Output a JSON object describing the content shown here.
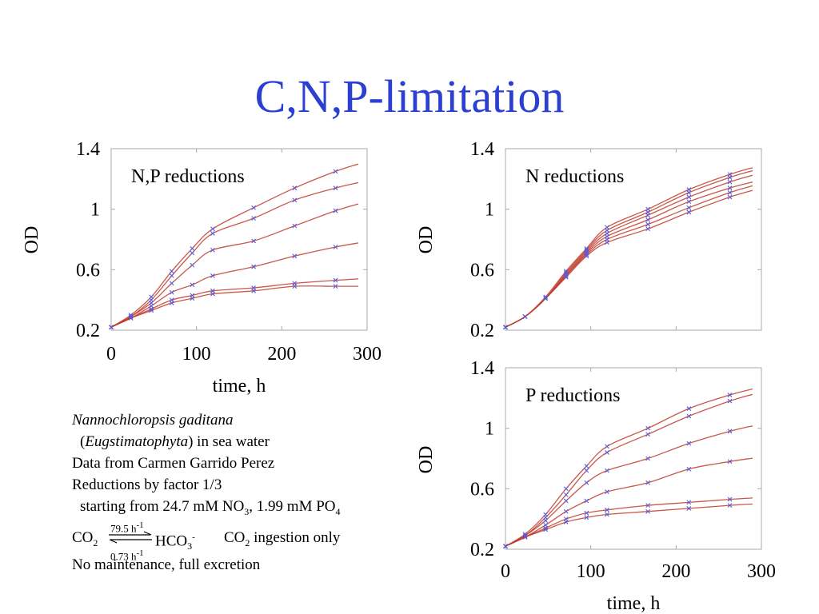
{
  "slide": {
    "title": "C,N,P-limitation"
  },
  "notes": {
    "species": "Nannochloropsis gaditana",
    "phylum_open": "(",
    "phylum": "Eugstimatophyta",
    "phylum_close": ") in sea water",
    "data_source": "Data from Carmen Garrido Perez",
    "reductions": "Reductions by factor 1/3",
    "start_prefix": "starting from 24.7 mM NO",
    "no3_sub": "3",
    "start_mid": ", 1.99 mM PO",
    "po4_sub": "4",
    "co2_a": "CO",
    "co2_a_sub": "2",
    "hco3": "HCO",
    "hco3_sub": "3",
    "hco3_sup": "-",
    "rate_forward": "79.5 h",
    "rate_forward_sup": "-1",
    "rate_back": "0.73 h",
    "rate_back_sup": "-1",
    "co2_b": "CO",
    "co2_b_sub": "2",
    "co2_b_rest": " ingestion only",
    "maintenance": "No maintenance, full excretion"
  },
  "colors": {
    "title": "#2b3fd3",
    "curve": "#c0392b",
    "marker": "#5b5bd6",
    "frame": "#aaaaaa"
  },
  "chart_data": [
    {
      "type": "line",
      "panel_label": "N,P reductions",
      "xlabel": "time, h",
      "ylabel": "OD",
      "xlim": [
        0,
        300
      ],
      "ylim": [
        0.2,
        1.4
      ],
      "xticks": [
        "0",
        "100",
        "200",
        "300"
      ],
      "yticks": [
        "0.2",
        "0.6",
        "1",
        "1.4"
      ],
      "x": [
        0,
        23,
        47,
        71,
        95,
        119,
        167,
        215,
        263
      ],
      "series": [
        {
          "values": [
            0.22,
            0.3,
            0.42,
            0.59,
            0.74,
            0.87,
            1.01,
            1.14,
            1.25
          ]
        },
        {
          "values": [
            0.22,
            0.29,
            0.4,
            0.56,
            0.71,
            0.84,
            0.94,
            1.06,
            1.14
          ]
        },
        {
          "values": [
            0.22,
            0.29,
            0.38,
            0.51,
            0.63,
            0.73,
            0.79,
            0.89,
            0.99
          ]
        },
        {
          "values": [
            0.22,
            0.28,
            0.36,
            0.45,
            0.5,
            0.56,
            0.62,
            0.69,
            0.75
          ]
        },
        {
          "values": [
            0.22,
            0.28,
            0.34,
            0.4,
            0.43,
            0.46,
            0.48,
            0.51,
            0.53
          ]
        },
        {
          "values": [
            0.22,
            0.28,
            0.33,
            0.38,
            0.41,
            0.44,
            0.46,
            0.49,
            0.49
          ]
        }
      ]
    },
    {
      "type": "line",
      "panel_label": "N reductions",
      "xlabel": "",
      "ylabel": "OD",
      "xlim": [
        0,
        300
      ],
      "ylim": [
        0.2,
        1.4
      ],
      "xticks": [],
      "yticks": [
        "0.2",
        "0.6",
        "1",
        "1.4"
      ],
      "x": [
        0,
        23,
        47,
        71,
        95,
        119,
        167,
        215,
        263
      ],
      "series": [
        {
          "values": [
            0.22,
            0.29,
            0.42,
            0.59,
            0.74,
            0.88,
            1.0,
            1.13,
            1.23
          ]
        },
        {
          "values": [
            0.22,
            0.29,
            0.41,
            0.58,
            0.73,
            0.86,
            0.98,
            1.11,
            1.21
          ]
        },
        {
          "values": [
            0.22,
            0.29,
            0.41,
            0.57,
            0.72,
            0.84,
            0.96,
            1.08,
            1.18
          ]
        },
        {
          "values": [
            0.22,
            0.29,
            0.41,
            0.56,
            0.71,
            0.82,
            0.93,
            1.05,
            1.14
          ]
        },
        {
          "values": [
            0.22,
            0.29,
            0.41,
            0.56,
            0.7,
            0.8,
            0.9,
            1.01,
            1.11
          ]
        },
        {
          "values": [
            0.22,
            0.29,
            0.41,
            0.55,
            0.69,
            0.78,
            0.87,
            0.98,
            1.08
          ]
        }
      ]
    },
    {
      "type": "line",
      "panel_label": "P reductions",
      "xlabel": "time, h",
      "ylabel": "OD",
      "xlim": [
        0,
        300
      ],
      "ylim": [
        0.2,
        1.4
      ],
      "xticks": [
        "0",
        "100",
        "200",
        "300"
      ],
      "yticks": [
        "0.2",
        "0.6",
        "1",
        "1.4"
      ],
      "x": [
        0,
        23,
        47,
        71,
        95,
        119,
        167,
        215,
        263
      ],
      "series": [
        {
          "values": [
            0.22,
            0.3,
            0.43,
            0.6,
            0.75,
            0.88,
            1.0,
            1.13,
            1.22
          ]
        },
        {
          "values": [
            0.22,
            0.29,
            0.41,
            0.56,
            0.72,
            0.84,
            0.96,
            1.08,
            1.18
          ]
        },
        {
          "values": [
            0.22,
            0.29,
            0.39,
            0.52,
            0.64,
            0.72,
            0.8,
            0.9,
            0.98
          ]
        },
        {
          "values": [
            0.22,
            0.28,
            0.36,
            0.45,
            0.52,
            0.58,
            0.64,
            0.73,
            0.78
          ]
        },
        {
          "values": [
            0.22,
            0.28,
            0.34,
            0.4,
            0.44,
            0.46,
            0.49,
            0.51,
            0.53
          ]
        },
        {
          "values": [
            0.22,
            0.28,
            0.33,
            0.38,
            0.41,
            0.43,
            0.45,
            0.47,
            0.49
          ]
        }
      ]
    }
  ]
}
